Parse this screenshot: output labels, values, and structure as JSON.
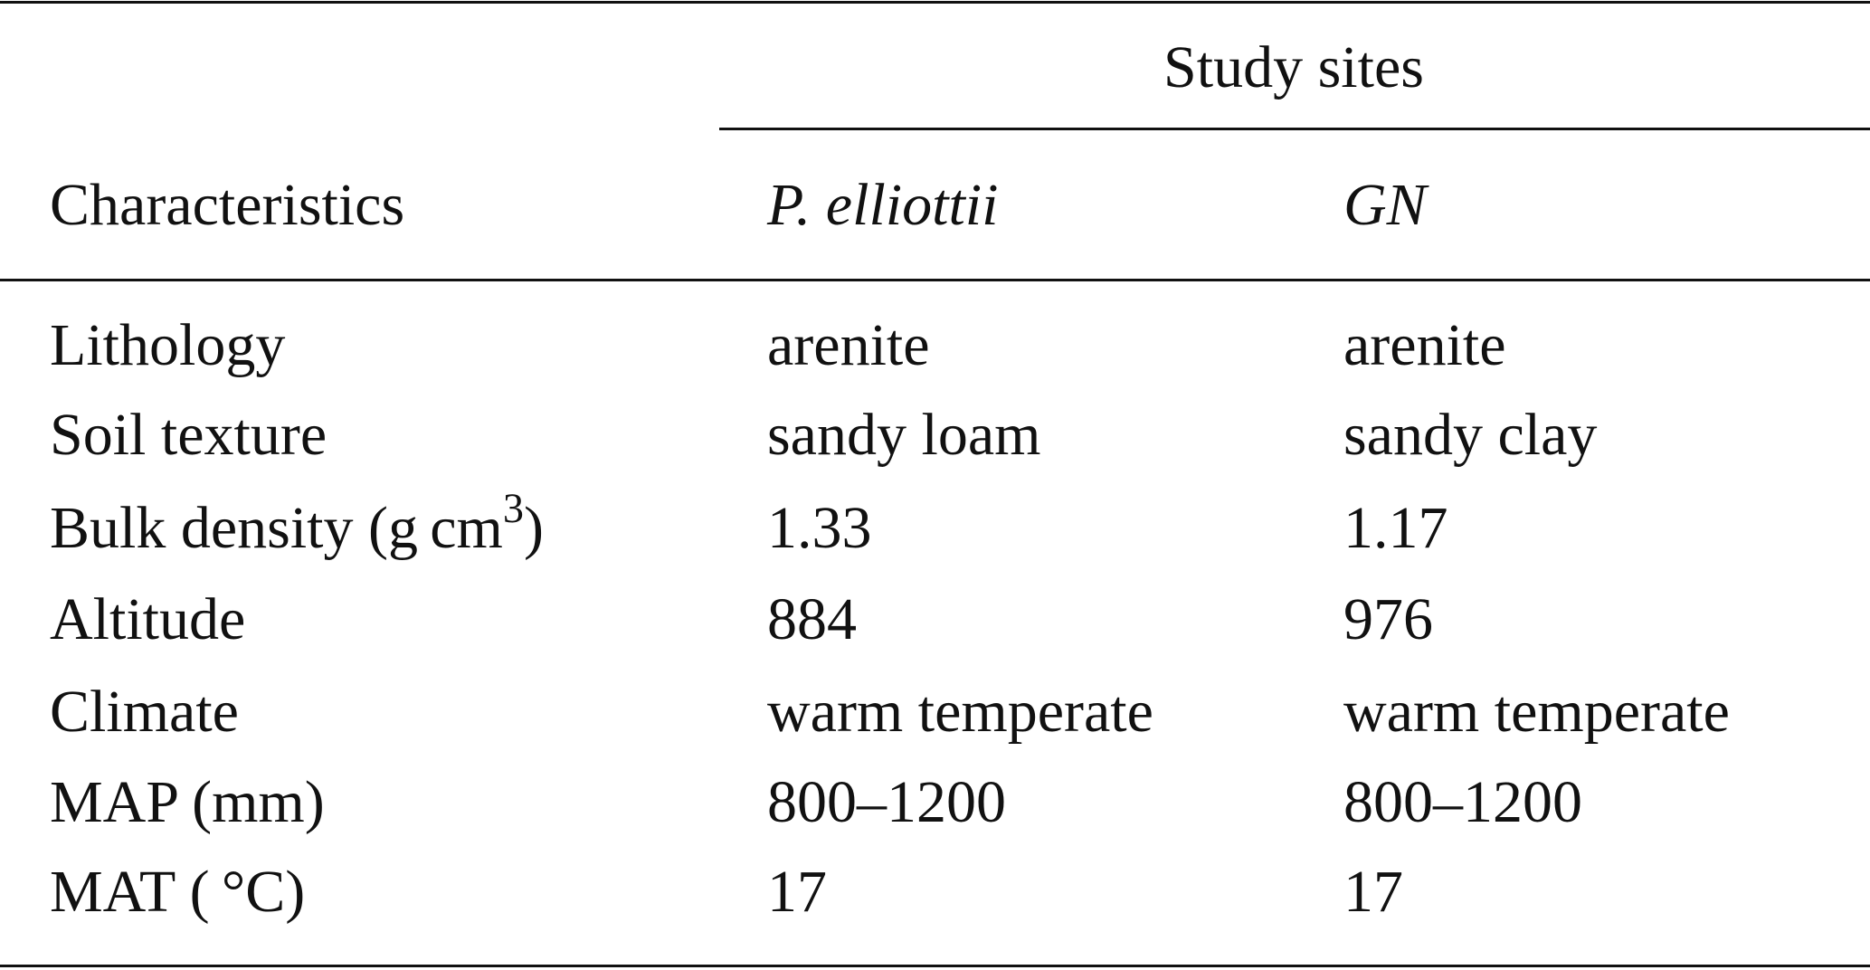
{
  "table": {
    "group_header": "Study sites",
    "columns": [
      "Characteristics",
      "P. elliottii",
      "GN"
    ],
    "rows": [
      [
        "Lithology",
        "arenite",
        "arenite"
      ],
      [
        "Soil texture",
        "sandy loam",
        "sandy clay"
      ],
      [
        [
          "Bulk density (g cm",
          "3",
          ")"
        ],
        "1.33",
        "1.17"
      ],
      [
        "Altitude",
        "884",
        "976"
      ],
      [
        "Climate",
        "warm temperate",
        "warm temperate"
      ],
      [
        "MAP (mm)",
        "800–1200",
        "800–1200"
      ],
      [
        "MAT ( °C)",
        "17",
        "17"
      ]
    ]
  }
}
